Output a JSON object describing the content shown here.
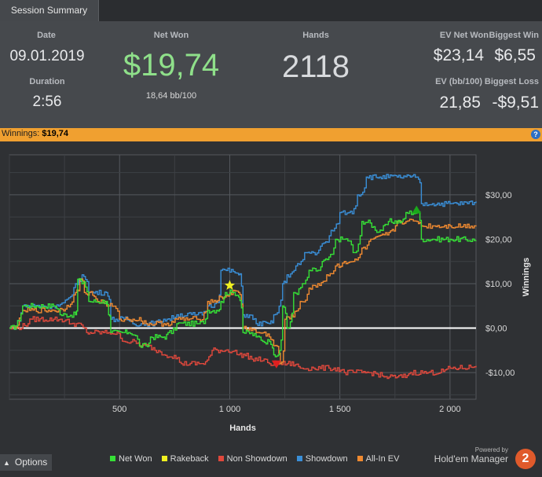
{
  "tab": {
    "label": "Session Summary"
  },
  "summary": {
    "date_label": "Date",
    "date_value": "09.01.2019",
    "duration_label": "Duration",
    "duration_value": "2:56",
    "netwon_label": "Net Won",
    "netwon_value": "$19,74",
    "netwon_sub": "18,64 bb/100",
    "hands_label": "Hands",
    "hands_value": "2118",
    "ev_net_won_label": "EV Net Won",
    "ev_net_won_value": "$23,14",
    "biggest_win_label": "Biggest Win",
    "biggest_win_value": "$6,55",
    "ev_bb_label": "EV (bb/100)",
    "ev_bb_value": "21,85",
    "biggest_loss_label": "Biggest Loss",
    "biggest_loss_value": "-$9,51"
  },
  "winnings_bar": {
    "label": "Winnings:",
    "value": "$19,74",
    "help_icon": "help-icon"
  },
  "colors": {
    "net_won": "#36e036",
    "rakeback": "#f0f020",
    "non_showdown": "#e0483c",
    "showdown": "#3a8fd8",
    "all_in_ev": "#f08a30",
    "accent": "#f0a030"
  },
  "options": {
    "label": "Options",
    "icon": "chevron-up-icon"
  },
  "branding": {
    "powered_by": "Powered by",
    "name": "Hold'em Manager",
    "logo": "2"
  },
  "chart_data": {
    "type": "line",
    "xlabel": "Hands",
    "ylabel": "Winnings",
    "xlim": [
      0,
      2118
    ],
    "ylim": [
      -16,
      39
    ],
    "x_ticks": [
      {
        "v": 500,
        "label": "500"
      },
      {
        "v": 1000,
        "label": "1 000"
      },
      {
        "v": 1500,
        "label": "1 500"
      },
      {
        "v": 2000,
        "label": "2 000"
      }
    ],
    "y_ticks": [
      {
        "v": 30,
        "label": "$30,00"
      },
      {
        "v": 20,
        "label": "$20,00"
      },
      {
        "v": 10,
        "label": "$10,00"
      },
      {
        "v": 0,
        "label": "$0,00"
      },
      {
        "v": -10,
        "label": "-$10,00"
      }
    ],
    "grid": true,
    "legend_position": "bottom",
    "series": [
      {
        "name": "Net Won",
        "color": "#36e036",
        "points": [
          [
            0,
            0
          ],
          [
            60,
            5
          ],
          [
            200,
            5
          ],
          [
            230,
            3
          ],
          [
            300,
            3
          ],
          [
            310,
            11
          ],
          [
            330,
            10
          ],
          [
            360,
            6
          ],
          [
            440,
            6
          ],
          [
            450,
            3
          ],
          [
            460,
            -1
          ],
          [
            520,
            -1
          ],
          [
            540,
            -1
          ],
          [
            590,
            -4
          ],
          [
            620,
            -4
          ],
          [
            640,
            -2
          ],
          [
            700,
            -2
          ],
          [
            720,
            -1
          ],
          [
            760,
            1
          ],
          [
            850,
            1
          ],
          [
            890,
            2
          ],
          [
            900,
            4
          ],
          [
            940,
            4
          ],
          [
            960,
            6
          ],
          [
            980,
            8
          ],
          [
            1010,
            8
          ],
          [
            1040,
            7
          ],
          [
            1060,
            -1
          ],
          [
            1120,
            -2
          ],
          [
            1150,
            -3
          ],
          [
            1180,
            -3
          ],
          [
            1200,
            -6
          ],
          [
            1220,
            -6
          ],
          [
            1240,
            5
          ],
          [
            1260,
            0
          ],
          [
            1290,
            8
          ],
          [
            1330,
            10
          ],
          [
            1360,
            13
          ],
          [
            1400,
            13
          ],
          [
            1420,
            15
          ],
          [
            1450,
            16
          ],
          [
            1480,
            20
          ],
          [
            1520,
            20
          ],
          [
            1560,
            17
          ],
          [
            1600,
            24
          ],
          [
            1660,
            22
          ],
          [
            1720,
            24
          ],
          [
            1780,
            24
          ],
          [
            1800,
            26
          ],
          [
            1850,
            26
          ],
          [
            1870,
            20
          ],
          [
            1920,
            20
          ],
          [
            2000,
            20
          ],
          [
            2118,
            19.74
          ]
        ]
      },
      {
        "name": "Rakeback",
        "color": "#f0f020",
        "points": [
          [
            0,
            0
          ],
          [
            2118,
            0
          ]
        ]
      },
      {
        "name": "Non Showdown",
        "color": "#e0483c",
        "points": [
          [
            0,
            0
          ],
          [
            100,
            2
          ],
          [
            200,
            2
          ],
          [
            280,
            1
          ],
          [
            350,
            -1
          ],
          [
            450,
            -1
          ],
          [
            520,
            -3
          ],
          [
            600,
            -4
          ],
          [
            660,
            -5
          ],
          [
            700,
            -6
          ],
          [
            780,
            -8
          ],
          [
            860,
            -8
          ],
          [
            920,
            -5
          ],
          [
            980,
            -5
          ],
          [
            1040,
            -6
          ],
          [
            1100,
            -7
          ],
          [
            1180,
            -8
          ],
          [
            1210,
            -8
          ],
          [
            1260,
            -8
          ],
          [
            1320,
            -9
          ],
          [
            1380,
            -9
          ],
          [
            1450,
            -9
          ],
          [
            1520,
            -10
          ],
          [
            1600,
            -10
          ],
          [
            1700,
            -11
          ],
          [
            1760,
            -11
          ],
          [
            1820,
            -10
          ],
          [
            1900,
            -10
          ],
          [
            2000,
            -9
          ],
          [
            2118,
            -8.5
          ]
        ]
      },
      {
        "name": "Showdown",
        "color": "#3a8fd8",
        "points": [
          [
            0,
            0
          ],
          [
            60,
            5
          ],
          [
            200,
            5
          ],
          [
            300,
            10
          ],
          [
            330,
            12
          ],
          [
            360,
            8
          ],
          [
            440,
            8
          ],
          [
            460,
            2
          ],
          [
            520,
            2
          ],
          [
            560,
            1
          ],
          [
            620,
            1
          ],
          [
            700,
            2
          ],
          [
            760,
            3
          ],
          [
            850,
            3
          ],
          [
            900,
            5
          ],
          [
            940,
            6
          ],
          [
            960,
            13
          ],
          [
            1040,
            12
          ],
          [
            1060,
            3
          ],
          [
            1120,
            1
          ],
          [
            1180,
            1
          ],
          [
            1200,
            3
          ],
          [
            1240,
            10
          ],
          [
            1260,
            12
          ],
          [
            1300,
            14
          ],
          [
            1340,
            17
          ],
          [
            1380,
            17
          ],
          [
            1420,
            19
          ],
          [
            1460,
            22
          ],
          [
            1500,
            26
          ],
          [
            1540,
            26
          ],
          [
            1580,
            30
          ],
          [
            1620,
            34
          ],
          [
            1680,
            34
          ],
          [
            1760,
            34
          ],
          [
            1820,
            34
          ],
          [
            1850,
            34
          ],
          [
            1870,
            28
          ],
          [
            1920,
            28
          ],
          [
            2000,
            28
          ],
          [
            2118,
            28.5
          ]
        ]
      },
      {
        "name": "All-In EV",
        "color": "#f08a30",
        "points": [
          [
            0,
            0
          ],
          [
            60,
            4
          ],
          [
            200,
            4
          ],
          [
            300,
            8
          ],
          [
            320,
            11
          ],
          [
            340,
            8
          ],
          [
            400,
            6
          ],
          [
            450,
            5
          ],
          [
            500,
            2
          ],
          [
            560,
            2
          ],
          [
            620,
            1
          ],
          [
            700,
            1
          ],
          [
            760,
            2
          ],
          [
            850,
            2
          ],
          [
            900,
            6
          ],
          [
            960,
            7
          ],
          [
            1000,
            8
          ],
          [
            1040,
            8
          ],
          [
            1060,
            0
          ],
          [
            1120,
            -1
          ],
          [
            1180,
            -2
          ],
          [
            1200,
            -4
          ],
          [
            1230,
            -8
          ],
          [
            1250,
            2
          ],
          [
            1280,
            3
          ],
          [
            1320,
            6
          ],
          [
            1360,
            9
          ],
          [
            1400,
            10
          ],
          [
            1440,
            12
          ],
          [
            1480,
            14
          ],
          [
            1520,
            15
          ],
          [
            1560,
            15
          ],
          [
            1600,
            18
          ],
          [
            1640,
            20
          ],
          [
            1700,
            21
          ],
          [
            1760,
            24
          ],
          [
            1800,
            24
          ],
          [
            1850,
            24
          ],
          [
            1870,
            23
          ],
          [
            1920,
            23
          ],
          [
            2000,
            23
          ],
          [
            2118,
            23.1
          ]
        ]
      }
    ],
    "markers": [
      {
        "name": "star",
        "x": 1000,
        "y": 9.6,
        "color": "#f0f020"
      },
      {
        "name": "triangle-down",
        "x": 1212,
        "y": -8,
        "color": "#e02020"
      },
      {
        "name": "triangle-up",
        "x": 1848,
        "y": 26.5,
        "color": "#1aa81a"
      }
    ]
  }
}
